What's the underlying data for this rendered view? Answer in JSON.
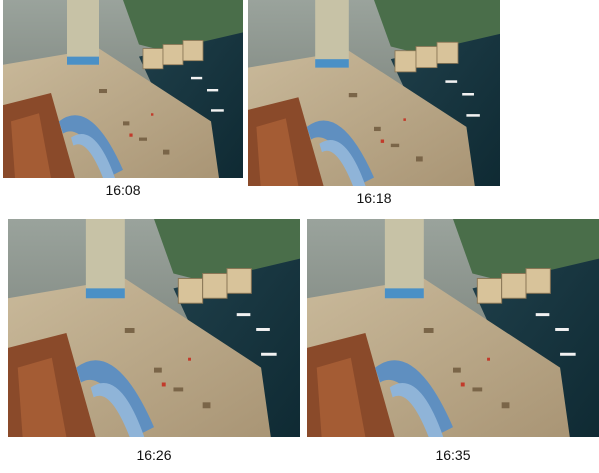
{
  "captions": [
    "16:08",
    "16:18",
    "16:26",
    "16:35"
  ]
}
